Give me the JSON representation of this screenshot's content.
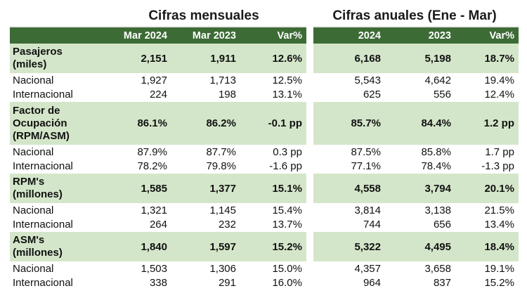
{
  "monthly": {
    "title": "Cifras mensuales",
    "headers": [
      "Mar 2024",
      "Mar 2023",
      "Var%"
    ],
    "rows": [
      {
        "label": "Pasajeros (miles)",
        "label_lines": [
          "Pasajeros",
          "(miles)"
        ],
        "bold": true,
        "values": [
          "2,151",
          "1,911",
          "12.6%"
        ]
      },
      {
        "label": "Nacional",
        "bold": false,
        "values": [
          "1,927",
          "1,713",
          "12.5%"
        ]
      },
      {
        "label": "Internacional",
        "bold": false,
        "values": [
          "224",
          "198",
          "13.1%"
        ]
      },
      {
        "label": "Factor de Ocupación (RPM/ASM)",
        "label_lines": [
          "Factor de",
          "Ocupación",
          "(RPM/ASM)"
        ],
        "bold": true,
        "values": [
          "86.1%",
          "86.2%",
          "-0.1 pp"
        ]
      },
      {
        "label": "Nacional",
        "bold": false,
        "values": [
          "87.9%",
          "87.7%",
          "0.3 pp"
        ]
      },
      {
        "label": "Internacional",
        "bold": false,
        "values": [
          "78.2%",
          "79.8%",
          "-1.6 pp"
        ]
      },
      {
        "label": "RPM's (millones)",
        "label_lines": [
          "RPM's",
          "(millones)"
        ],
        "bold": true,
        "values": [
          "1,585",
          "1,377",
          "15.1%"
        ]
      },
      {
        "label": "Nacional",
        "bold": false,
        "values": [
          "1,321",
          "1,145",
          "15.4%"
        ]
      },
      {
        "label": "Internacional",
        "bold": false,
        "values": [
          "264",
          "232",
          "13.7%"
        ]
      },
      {
        "label": "ASM's (millones)",
        "label_lines": [
          "ASM's",
          "(millones)"
        ],
        "bold": true,
        "values": [
          "1,840",
          "1,597",
          "15.2%"
        ]
      },
      {
        "label": "Nacional",
        "bold": false,
        "values": [
          "1,503",
          "1,306",
          "15.0%"
        ]
      },
      {
        "label": "Internacional",
        "bold": false,
        "values": [
          "338",
          "291",
          "16.0%"
        ]
      }
    ]
  },
  "annual": {
    "title": "Cifras anuales (Ene - Mar)",
    "headers": [
      "2024",
      "2023",
      "Var%"
    ],
    "rows": [
      {
        "values": [
          "6,168",
          "5,198",
          "18.7%"
        ]
      },
      {
        "values": [
          "5,543",
          "4,642",
          "19.4%"
        ]
      },
      {
        "values": [
          "625",
          "556",
          "12.4%"
        ]
      },
      {
        "values": [
          "85.7%",
          "84.4%",
          "1.2 pp"
        ]
      },
      {
        "values": [
          "87.5%",
          "85.8%",
          "1.7 pp"
        ]
      },
      {
        "values": [
          "77.1%",
          "78.4%",
          "-1.3 pp"
        ]
      },
      {
        "values": [
          "4,558",
          "3,794",
          "20.1%"
        ]
      },
      {
        "values": [
          "3,814",
          "3,138",
          "21.5%"
        ]
      },
      {
        "values": [
          "744",
          "656",
          "13.4%"
        ]
      },
      {
        "values": [
          "5,322",
          "4,495",
          "18.4%"
        ]
      },
      {
        "values": [
          "4,357",
          "3,658",
          "19.1%"
        ]
      },
      {
        "values": [
          "964",
          "837",
          "15.2%"
        ]
      }
    ]
  },
  "colors": {
    "header_bg": "#3d6b35",
    "header_text": "#ffffff",
    "main_row_bg": "#d4e6ca"
  }
}
